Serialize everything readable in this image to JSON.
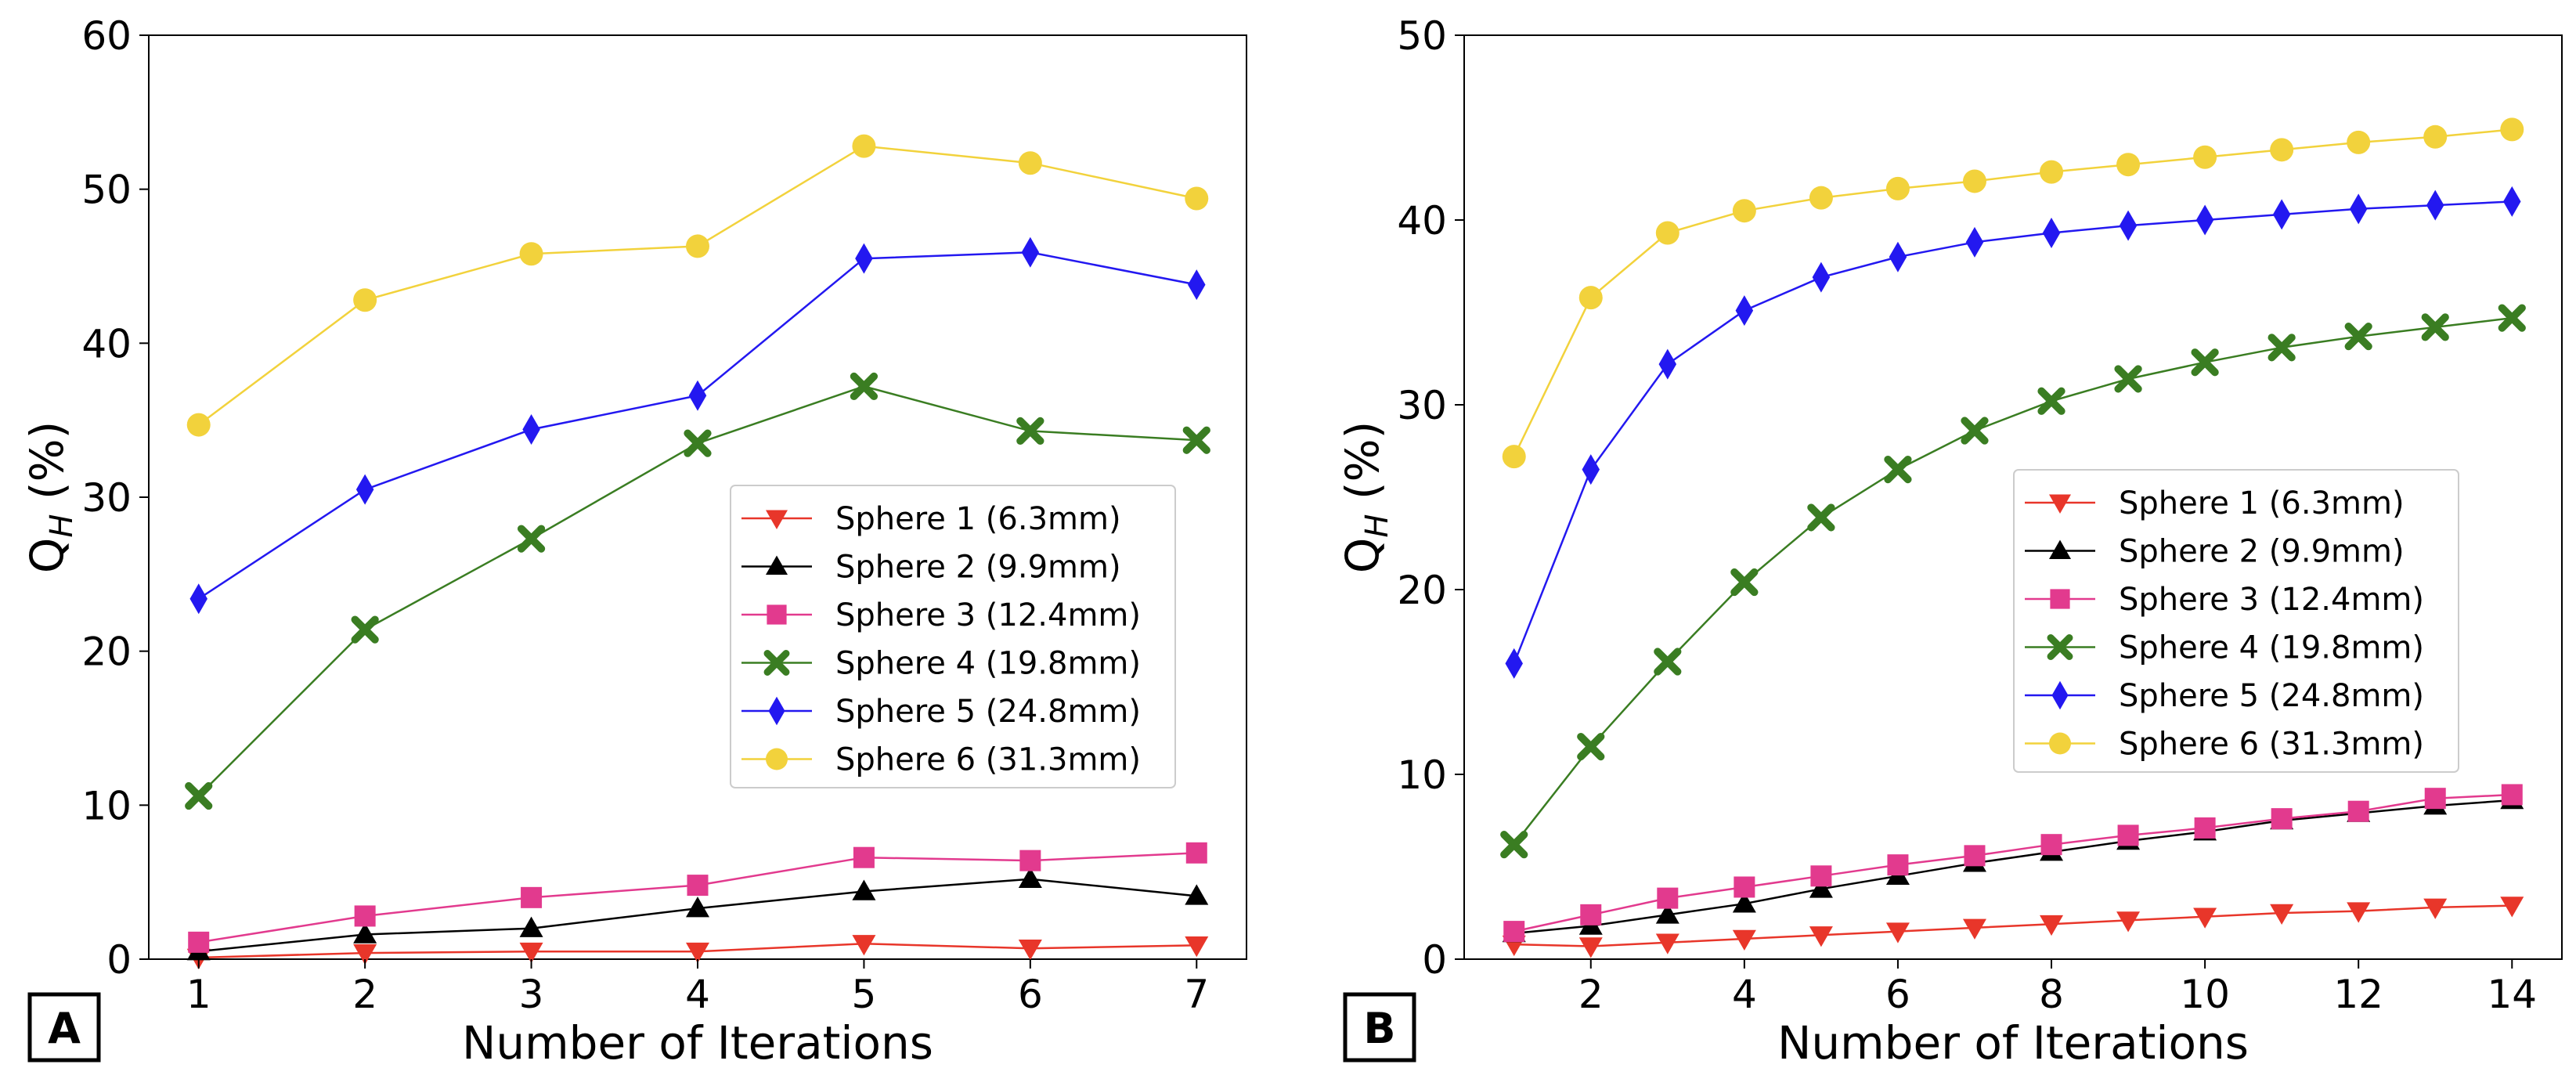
{
  "chart_data": [
    {
      "type": "line",
      "panel": "A",
      "xlabel": "Number of Iterations",
      "ylabel": "Q",
      "ylabel_sub": "H",
      "ylabel_suffix": "(%)",
      "xlim": [
        0.7,
        7.3
      ],
      "ylim": [
        0,
        60
      ],
      "xticks": [
        1,
        2,
        3,
        4,
        5,
        6,
        7
      ],
      "yticks": [
        0,
        10,
        20,
        30,
        40,
        50,
        60
      ],
      "legend_position": "center-right",
      "x": [
        1,
        2,
        3,
        4,
        5,
        6,
        7
      ],
      "series": [
        {
          "name": "Sphere 1 (6.3mm)",
          "color": "#e8362a",
          "marker": "triangle-down",
          "values": [
            0.1,
            0.4,
            0.5,
            0.5,
            1.0,
            0.7,
            0.9
          ]
        },
        {
          "name": "Sphere 2 (9.9mm)",
          "color": "#000000",
          "marker": "triangle-up",
          "values": [
            0.5,
            1.6,
            2.0,
            3.3,
            4.4,
            5.2,
            4.1
          ]
        },
        {
          "name": "Sphere 3 (12.4mm)",
          "color": "#e23a8e",
          "marker": "square",
          "values": [
            1.1,
            2.8,
            4.0,
            4.8,
            6.6,
            6.4,
            6.9
          ]
        },
        {
          "name": "Sphere 4 (19.8mm)",
          "color": "#3a7d22",
          "marker": "x",
          "values": [
            10.6,
            21.4,
            27.3,
            33.5,
            37.2,
            34.3,
            33.7
          ]
        },
        {
          "name": "Sphere 5 (24.8mm)",
          "color": "#2318f0",
          "marker": "diamond",
          "values": [
            23.4,
            30.5,
            34.4,
            36.6,
            45.5,
            45.9,
            43.8
          ]
        },
        {
          "name": "Sphere 6 (31.3mm)",
          "color": "#f2d23c",
          "marker": "circle",
          "values": [
            34.7,
            42.8,
            45.8,
            46.3,
            52.8,
            51.7,
            49.4
          ]
        }
      ]
    },
    {
      "type": "line",
      "panel": "B",
      "xlabel": "Number of Iterations",
      "ylabel": "Q",
      "ylabel_sub": "H",
      "ylabel_suffix": "(%)",
      "xlim": [
        0.35,
        14.65
      ],
      "ylim": [
        0,
        50
      ],
      "xticks": [
        2,
        4,
        6,
        8,
        10,
        12,
        14
      ],
      "yticks": [
        0,
        10,
        20,
        30,
        40,
        50
      ],
      "legend_position": "center-right",
      "x": [
        1,
        2,
        3,
        4,
        5,
        6,
        7,
        8,
        9,
        10,
        11,
        12,
        13,
        14
      ],
      "series": [
        {
          "name": "Sphere 1 (6.3mm)",
          "color": "#e8362a",
          "marker": "triangle-down",
          "values": [
            0.8,
            0.7,
            0.9,
            1.1,
            1.3,
            1.5,
            1.7,
            1.9,
            2.1,
            2.3,
            2.5,
            2.6,
            2.8,
            2.9
          ]
        },
        {
          "name": "Sphere 2 (9.9mm)",
          "color": "#000000",
          "marker": "triangle-up",
          "values": [
            1.4,
            1.8,
            2.4,
            3.0,
            3.8,
            4.5,
            5.2,
            5.8,
            6.4,
            6.9,
            7.5,
            7.9,
            8.3,
            8.6
          ]
        },
        {
          "name": "Sphere 3 (12.4mm)",
          "color": "#e23a8e",
          "marker": "square",
          "values": [
            1.5,
            2.4,
            3.3,
            3.9,
            4.5,
            5.1,
            5.6,
            6.2,
            6.7,
            7.1,
            7.6,
            8.0,
            8.7,
            8.9
          ]
        },
        {
          "name": "Sphere 4 (19.8mm)",
          "color": "#3a7d22",
          "marker": "x",
          "values": [
            6.2,
            11.5,
            16.1,
            20.4,
            23.9,
            26.5,
            28.6,
            30.2,
            31.4,
            32.3,
            33.1,
            33.7,
            34.2,
            34.7
          ]
        },
        {
          "name": "Sphere 5 (24.8mm)",
          "color": "#2318f0",
          "marker": "diamond",
          "values": [
            16.0,
            26.5,
            32.2,
            35.1,
            36.9,
            38.0,
            38.8,
            39.3,
            39.7,
            40.0,
            40.3,
            40.6,
            40.8,
            41.0
          ]
        },
        {
          "name": "Sphere 6 (31.3mm)",
          "color": "#f2d23c",
          "marker": "circle",
          "values": [
            27.2,
            35.8,
            39.3,
            40.5,
            41.2,
            41.7,
            42.1,
            42.6,
            43.0,
            43.4,
            43.8,
            44.2,
            44.5,
            44.9
          ]
        }
      ]
    }
  ]
}
